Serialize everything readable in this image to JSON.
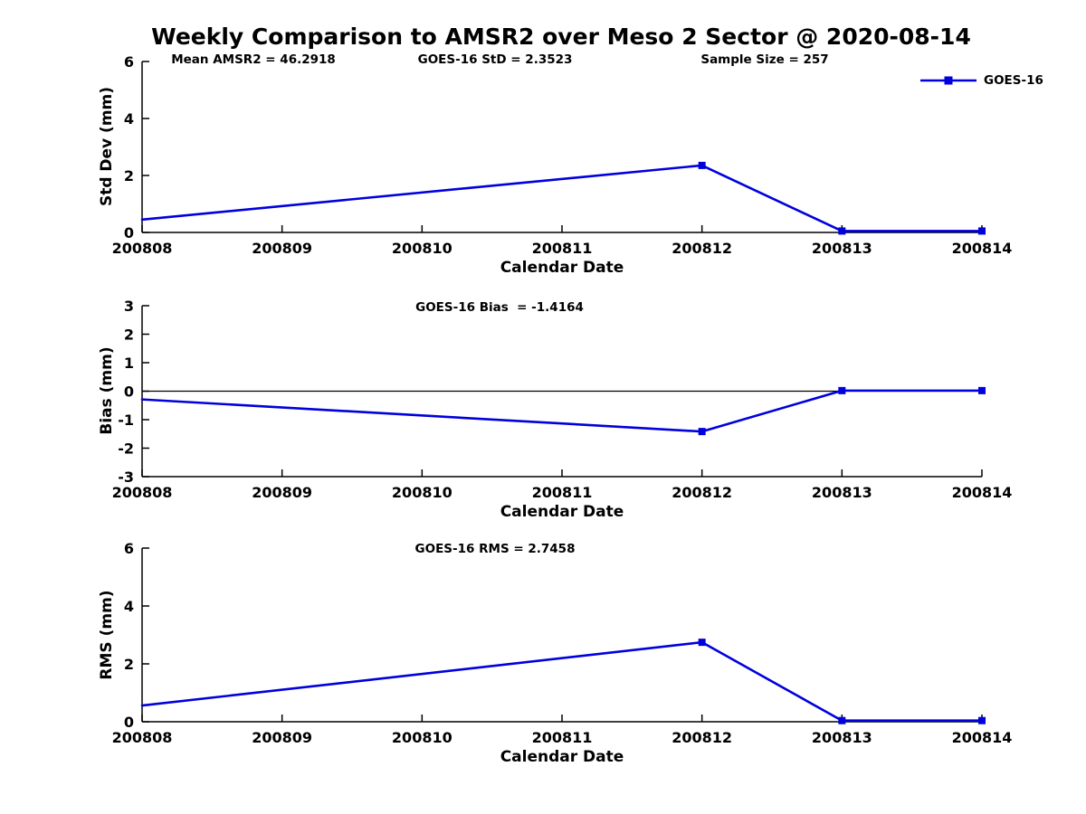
{
  "title": "Weekly Comparison to AMSR2 over Meso 2 Sector @ 2020-08-14",
  "colors": {
    "line": "#0000dd",
    "axis": "#000000",
    "zero_line": "#000000",
    "text": "#000000",
    "background": "#ffffff"
  },
  "legend": {
    "label": "GOES-16",
    "marker": "filled-square"
  },
  "chart_data": [
    {
      "type": "line",
      "panel": "std-dev",
      "annotations": [
        "Mean AMSR2 = 46.2918",
        "GOES-16 StD = 2.3523",
        "Sample Size = 257"
      ],
      "xlabel": "Calendar Date",
      "ylabel": "Std Dev (mm)",
      "xlim": [
        200808,
        200814
      ],
      "ylim": [
        0,
        6
      ],
      "x_ticks": [
        "200808",
        "200809",
        "200810",
        "200811",
        "200812",
        "200813",
        "200814"
      ],
      "y_ticks": [
        0,
        2,
        4,
        6
      ],
      "zero_line": false,
      "grid": false,
      "legend_position": "top-right-outside",
      "series": [
        {
          "name": "GOES-16",
          "x": [
            200808,
            200812,
            200813,
            200814
          ],
          "y": [
            0.45,
            2.3523,
            0.05,
            0.05
          ]
        }
      ]
    },
    {
      "type": "line",
      "panel": "bias",
      "annotations": [
        "GOES-16 Bias  = -1.4164"
      ],
      "xlabel": "Calendar Date",
      "ylabel": "Bias (mm)",
      "xlim": [
        200808,
        200814
      ],
      "ylim": [
        -3,
        3
      ],
      "x_ticks": [
        "200808",
        "200809",
        "200810",
        "200811",
        "200812",
        "200813",
        "200814"
      ],
      "y_ticks": [
        3,
        2,
        1,
        0,
        -1,
        -2,
        -3
      ],
      "zero_line": true,
      "grid": false,
      "series": [
        {
          "name": "GOES-16",
          "x": [
            200808,
            200812,
            200813,
            200814
          ],
          "y": [
            -0.29,
            -1.4164,
            0.02,
            0.02
          ]
        }
      ]
    },
    {
      "type": "line",
      "panel": "rms",
      "annotations": [
        "GOES-16 RMS = 2.7458"
      ],
      "xlabel": "Calendar Date",
      "ylabel": "RMS (mm)",
      "xlim": [
        200808,
        200814
      ],
      "ylim": [
        0,
        6
      ],
      "x_ticks": [
        "200808",
        "200809",
        "200810",
        "200811",
        "200812",
        "200813",
        "200814"
      ],
      "y_ticks": [
        0,
        2,
        4,
        6
      ],
      "zero_line": false,
      "grid": false,
      "series": [
        {
          "name": "GOES-16",
          "x": [
            200808,
            200812,
            200813,
            200814
          ],
          "y": [
            0.56,
            2.7458,
            0.04,
            0.04
          ]
        }
      ]
    }
  ]
}
